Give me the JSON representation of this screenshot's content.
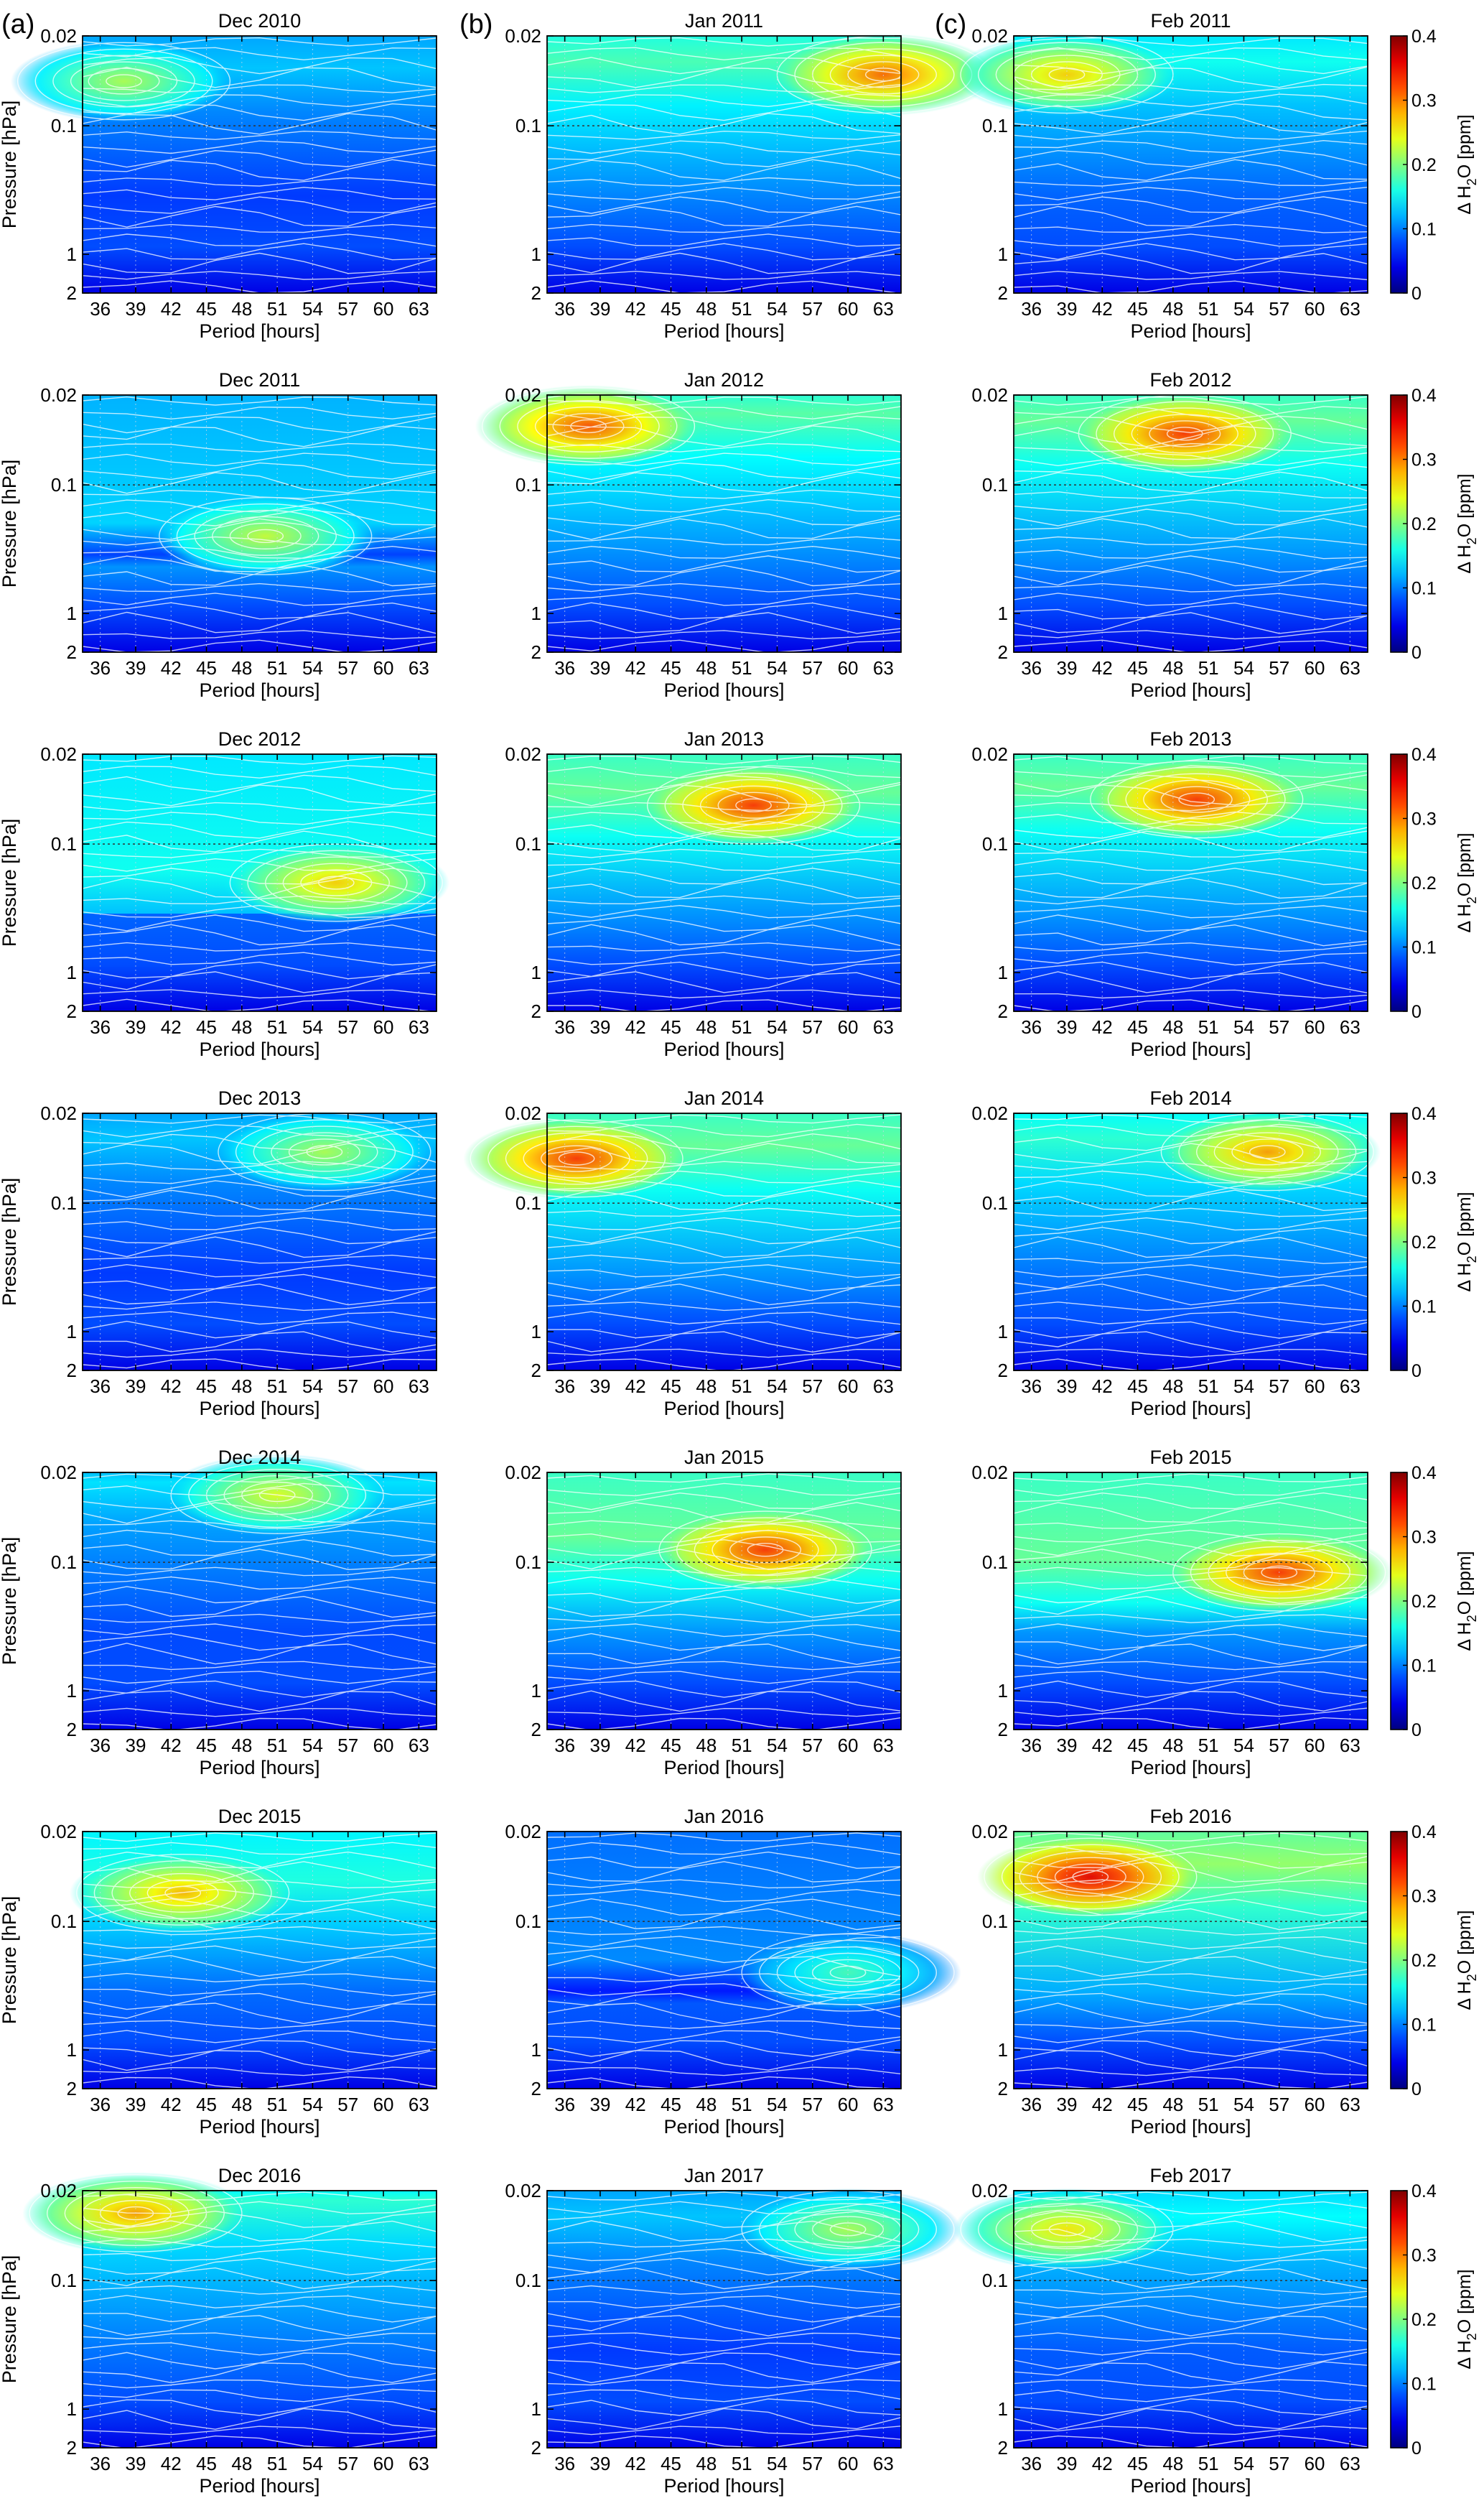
{
  "chart_data": {
    "type": "heatmap",
    "column_labels": [
      "(a)",
      "(b)",
      "(c)"
    ],
    "x": [
      36,
      39,
      42,
      45,
      48,
      51,
      54,
      57,
      60,
      63
    ],
    "x_ticklabels": [
      "36",
      "39",
      "42",
      "45",
      "48",
      "51",
      "54",
      "57",
      "60",
      "63"
    ],
    "xlabel": "Period [hours]",
    "ylabel": "Pressure [hPa]",
    "y_ticklabels": [
      "0.02",
      "0.1",
      "1",
      "2"
    ],
    "y_scale": "log",
    "y_ticks": [
      0.02,
      0.1,
      1,
      2
    ],
    "reference_line_pressure": 0.1,
    "colorbar": {
      "label": "Δ H2O [ppm]",
      "label_main": "Δ H",
      "label_sub": "2",
      "label_tail": "O [ppm]",
      "range": [
        0,
        0.4
      ],
      "ticks": [
        0,
        0.1,
        0.2,
        0.3,
        0.4
      ],
      "tick_labels": [
        "0",
        "0.1",
        "0.2",
        "0.3",
        "0.4"
      ]
    },
    "panels": [
      {
        "title": "Dec 2010",
        "peak": 0.22,
        "peak_period": 38,
        "peak_pressure": 0.045
      },
      {
        "title": "Jan 2011",
        "peak": 0.31,
        "peak_period": 63,
        "peak_pressure": 0.04
      },
      {
        "title": "Feb 2011",
        "peak": 0.27,
        "peak_period": 39,
        "peak_pressure": 0.04
      },
      {
        "title": "Dec 2011",
        "peak": 0.23,
        "peak_period": 50,
        "peak_pressure": 0.25
      },
      {
        "title": "Jan 2012",
        "peak": 0.32,
        "peak_period": 38,
        "peak_pressure": 0.035
      },
      {
        "title": "Feb 2012",
        "peak": 0.33,
        "peak_period": 49,
        "peak_pressure": 0.04
      },
      {
        "title": "Dec 2012",
        "peak": 0.27,
        "peak_period": 56,
        "peak_pressure": 0.2
      },
      {
        "title": "Jan 2013",
        "peak": 0.33,
        "peak_period": 52,
        "peak_pressure": 0.05
      },
      {
        "title": "Feb 2013",
        "peak": 0.33,
        "peak_period": 50,
        "peak_pressure": 0.045
      },
      {
        "title": "Dec 2013",
        "peak": 0.22,
        "peak_period": 55,
        "peak_pressure": 0.04
      },
      {
        "title": "Jan 2014",
        "peak": 0.33,
        "peak_period": 37,
        "peak_pressure": 0.045
      },
      {
        "title": "Feb 2014",
        "peak": 0.29,
        "peak_period": 56,
        "peak_pressure": 0.04
      },
      {
        "title": "Dec 2014",
        "peak": 0.24,
        "peak_period": 51,
        "peak_pressure": 0.03
      },
      {
        "title": "Jan 2015",
        "peak": 0.33,
        "peak_period": 53,
        "peak_pressure": 0.08
      },
      {
        "title": "Feb 2015",
        "peak": 0.33,
        "peak_period": 57,
        "peak_pressure": 0.12
      },
      {
        "title": "Dec 2015",
        "peak": 0.28,
        "peak_period": 43,
        "peak_pressure": 0.06
      },
      {
        "title": "Jan 2016",
        "peak": 0.18,
        "peak_period": 60,
        "peak_pressure": 0.25
      },
      {
        "title": "Feb 2016",
        "peak": 0.36,
        "peak_period": 41,
        "peak_pressure": 0.045
      },
      {
        "title": "Dec 2016",
        "peak": 0.29,
        "peak_period": 39,
        "peak_pressure": 0.03
      },
      {
        "title": "Jan 2017",
        "peak": 0.22,
        "peak_period": 60,
        "peak_pressure": 0.04
      },
      {
        "title": "Feb 2017",
        "peak": 0.26,
        "peak_period": 39,
        "peak_pressure": 0.04
      }
    ]
  }
}
